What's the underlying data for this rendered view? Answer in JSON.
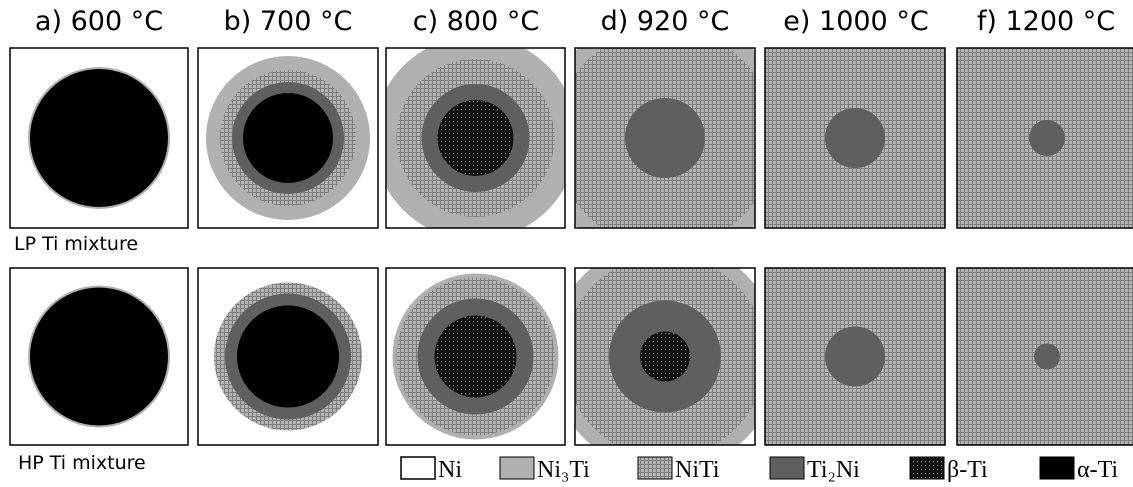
{
  "columns": [
    "a) 600 °C",
    "b) 700 °C",
    "c) 800 °C",
    "d) 920 °C",
    "e) 1000 °C",
    "f) 1200 °C"
  ],
  "rows": [
    "LP Ti mixture",
    "HP Ti mixture"
  ],
  "legend": [
    "Ni",
    "Ni₃Ti",
    "NiTi",
    "Ti₂Ni",
    "β-Ti",
    "α-Ti"
  ]
}
